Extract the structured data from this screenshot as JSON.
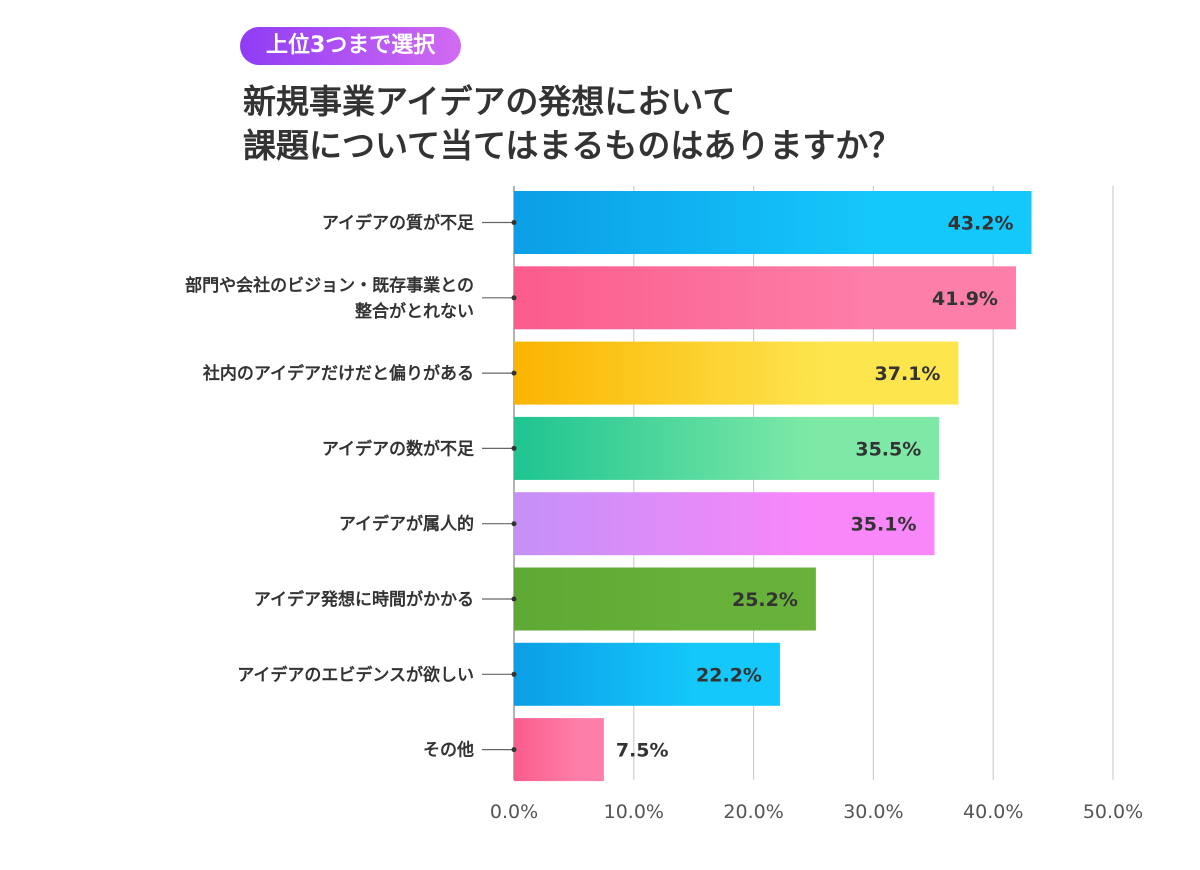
{
  "header": {
    "badge": "上位3つまで選択",
    "title_line1": "新規事業アイデアの発想において",
    "title_line2": "課題について当てはまるものはありますか？"
  },
  "chart_data": {
    "type": "bar",
    "orientation": "horizontal",
    "title": "新規事業アイデアの発想において課題について当てはまるものはありますか？",
    "categories": [
      [
        "アイデアの質が不足"
      ],
      [
        "部門や会社のビジョン・既存事業との",
        "整合がとれない"
      ],
      [
        "社内のアイデアだけだと偏りがある"
      ],
      [
        "アイデアの数が不足"
      ],
      [
        "アイデアが属人的"
      ],
      [
        "アイデア発想に時間がかかる"
      ],
      [
        "アイデアのエビデンスが欲しい"
      ],
      [
        "その他"
      ]
    ],
    "values": [
      43.2,
      41.9,
      37.1,
      35.5,
      35.1,
      25.2,
      22.2,
      7.5
    ],
    "value_labels": [
      "43.2%",
      "41.9%",
      "37.1%",
      "35.5%",
      "35.1%",
      "25.2%",
      "22.2%",
      "7.5%"
    ],
    "xlim": [
      0,
      50
    ],
    "ticks": [
      0,
      10,
      20,
      30,
      40,
      50
    ],
    "tick_labels": [
      "0.0%",
      "10.0%",
      "20.0%",
      "30.0%",
      "40.0%",
      "50.0%"
    ],
    "grid": true,
    "colors": [
      [
        "#0b9ee6",
        "#15c8fb"
      ],
      [
        "#fb5c8c",
        "#fd7ea8"
      ],
      [
        "#fbb400",
        "#fde54e"
      ],
      [
        "#1ec491",
        "#7ee9a7"
      ],
      [
        "#c491f7",
        "#f887fa"
      ],
      [
        "#5ea934",
        "#69b23a"
      ],
      [
        "#0b9ee6",
        "#15c8fb"
      ],
      [
        "#fb5c8c",
        "#fd7ea8"
      ]
    ]
  }
}
